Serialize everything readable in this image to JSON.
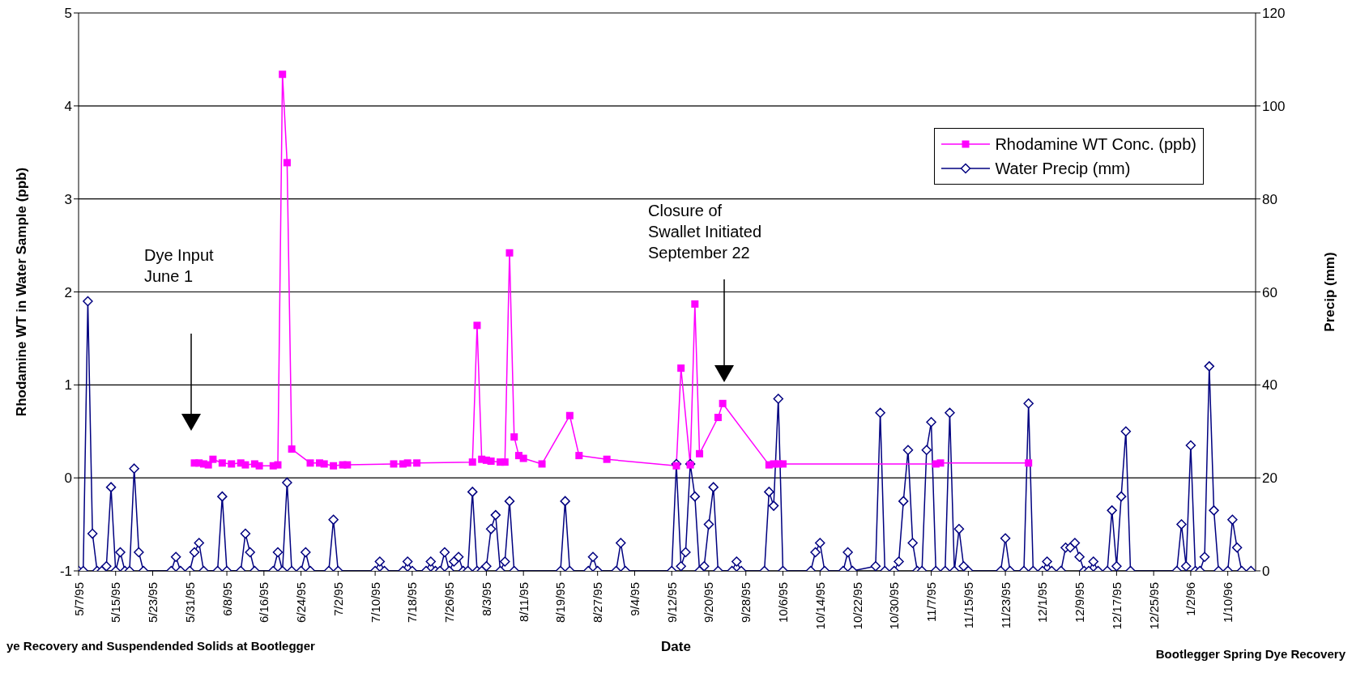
{
  "chart_data": {
    "type": "line",
    "xlabel": "Date",
    "ylabel": "Rhodamine WT in Water Sample (ppb)",
    "y2label": "Precip (mm)",
    "xlim": [
      "1995-05-07",
      "1996-01-16"
    ],
    "xticks": [
      {
        "value": "1995-05-07",
        "label": "5/7/95"
      },
      {
        "value": "1995-05-15",
        "label": "5/15/95"
      },
      {
        "value": "1995-05-23",
        "label": "5/23/95"
      },
      {
        "value": "1995-05-31",
        "label": "5/31/95"
      },
      {
        "value": "1995-06-08",
        "label": "6/8/95"
      },
      {
        "value": "1995-06-16",
        "label": "6/16/95"
      },
      {
        "value": "1995-06-24",
        "label": "6/24/95"
      },
      {
        "value": "1995-07-02",
        "label": "7/2/95"
      },
      {
        "value": "1995-07-10",
        "label": "7/10/95"
      },
      {
        "value": "1995-07-18",
        "label": "7/18/95"
      },
      {
        "value": "1995-07-26",
        "label": "7/26/95"
      },
      {
        "value": "1995-08-03",
        "label": "8/3/95"
      },
      {
        "value": "1995-08-11",
        "label": "8/11/95"
      },
      {
        "value": "1995-08-19",
        "label": "8/19/95"
      },
      {
        "value": "1995-08-27",
        "label": "8/27/95"
      },
      {
        "value": "1995-09-04",
        "label": "9/4/95"
      },
      {
        "value": "1995-09-12",
        "label": "9/12/95"
      },
      {
        "value": "1995-09-20",
        "label": "9/20/95"
      },
      {
        "value": "1995-09-28",
        "label": "9/28/95"
      },
      {
        "value": "1995-10-06",
        "label": "10/6/95"
      },
      {
        "value": "1995-10-14",
        "label": "10/14/95"
      },
      {
        "value": "1995-10-22",
        "label": "10/22/95"
      },
      {
        "value": "1995-10-30",
        "label": "10/30/95"
      },
      {
        "value": "1995-11-07",
        "label": "11/7/95"
      },
      {
        "value": "1995-11-15",
        "label": "11/15/95"
      },
      {
        "value": "1995-11-23",
        "label": "11/23/95"
      },
      {
        "value": "1995-12-01",
        "label": "12/1/95"
      },
      {
        "value": "1995-12-09",
        "label": "12/9/95"
      },
      {
        "value": "1995-12-17",
        "label": "12/17/95"
      },
      {
        "value": "1995-12-25",
        "label": "12/25/95"
      },
      {
        "value": "1996-01-02",
        "label": "1/2/96"
      },
      {
        "value": "1996-01-10",
        "label": "1/10/96"
      }
    ],
    "ylim": [
      -1,
      5
    ],
    "yticks": [
      -1,
      0,
      1,
      2,
      3,
      4,
      5
    ],
    "y2lim": [
      0,
      120
    ],
    "y2ticks": [
      0,
      20,
      40,
      60,
      80,
      100,
      120
    ],
    "grid": "y",
    "legend": "top right",
    "line_style": "solid",
    "series": [
      {
        "name": "Rhodamine WT Conc. (ppb)",
        "color": "#ff00ff",
        "marker": "square",
        "x": [
          "1995-06-01",
          "1995-06-02",
          "1995-06-03",
          "1995-06-04",
          "1995-06-05",
          "1995-06-07",
          "1995-06-09",
          "1995-06-11",
          "1995-06-12",
          "1995-06-14",
          "1995-06-15",
          "1995-06-18",
          "1995-06-19",
          "1995-06-20",
          "1995-06-21",
          "1995-06-22",
          "1995-06-26",
          "1995-06-28",
          "1995-06-29",
          "1995-07-01",
          "1995-07-03",
          "1995-07-04",
          "1995-07-14",
          "1995-07-16",
          "1995-07-17",
          "1995-07-19",
          "1995-07-31",
          "1995-08-01",
          "1995-08-02",
          "1995-08-03",
          "1995-08-04",
          "1995-08-06",
          "1995-08-07",
          "1995-08-08",
          "1995-08-09",
          "1995-08-10",
          "1995-08-11",
          "1995-08-15",
          "1995-08-21",
          "1995-08-23",
          "1995-08-29",
          "1995-09-13",
          "1995-09-14",
          "1995-09-16",
          "1995-09-17",
          "1995-09-18",
          "1995-09-22",
          "1995-09-23",
          "1995-10-03",
          "1995-10-04",
          "1995-10-05",
          "1995-10-06",
          "1995-11-08",
          "1995-11-09",
          "1995-11-28"
        ],
        "values": [
          0.16,
          0.16,
          0.15,
          0.14,
          0.2,
          0.16,
          0.15,
          0.16,
          0.14,
          0.15,
          0.13,
          0.13,
          0.14,
          4.34,
          3.39,
          0.31,
          0.16,
          0.16,
          0.15,
          0.13,
          0.14,
          0.14,
          0.15,
          0.15,
          0.16,
          0.16,
          0.17,
          1.64,
          0.2,
          0.19,
          0.18,
          0.17,
          0.17,
          2.42,
          0.44,
          0.24,
          0.21,
          0.15,
          0.67,
          0.24,
          0.2,
          0.13,
          1.18,
          0.14,
          1.87,
          0.26,
          0.65,
          0.8,
          0.14,
          0.15,
          0.15,
          0.15,
          0.15,
          0.16,
          0.16
        ]
      },
      {
        "name": "Water Precip (mm)",
        "color": "#000080",
        "marker": "diamond",
        "axis": "y2",
        "x": [
          "1995-05-07",
          "1995-05-08",
          "1995-05-09",
          "1995-05-10",
          "1995-05-11",
          "1995-05-12",
          "1995-05-13",
          "1995-05-14",
          "1995-05-15",
          "1995-05-16",
          "1995-05-17",
          "1995-05-18",
          "1995-05-19",
          "1995-05-20",
          "1995-05-21",
          "1995-05-27",
          "1995-05-28",
          "1995-05-29",
          "1995-05-31",
          "1995-06-01",
          "1995-06-02",
          "1995-06-03",
          "1995-06-06",
          "1995-06-07",
          "1995-06-08",
          "1995-06-11",
          "1995-06-12",
          "1995-06-13",
          "1995-06-14",
          "1995-06-18",
          "1995-06-19",
          "1995-06-20",
          "1995-06-21",
          "1995-06-22",
          "1995-06-24",
          "1995-06-25",
          "1995-06-26",
          "1995-06-30",
          "1995-07-01",
          "1995-07-02",
          "1995-07-10",
          "1995-07-11",
          "1995-07-12",
          "1995-07-16",
          "1995-07-17",
          "1995-07-18",
          "1995-07-21",
          "1995-07-22",
          "1995-07-23",
          "1995-07-24",
          "1995-07-25",
          "1995-07-26",
          "1995-07-27",
          "1995-07-28",
          "1995-07-29",
          "1995-07-30",
          "1995-07-31",
          "1995-08-01",
          "1995-08-02",
          "1995-08-03",
          "1995-08-04",
          "1995-08-05",
          "1995-08-06",
          "1995-08-07",
          "1995-08-08",
          "1995-08-09",
          "1995-08-19",
          "1995-08-20",
          "1995-08-21",
          "1995-08-25",
          "1995-08-26",
          "1995-08-27",
          "1995-08-31",
          "1995-09-01",
          "1995-09-02",
          "1995-09-12",
          "1995-09-13",
          "1995-09-14",
          "1995-09-15",
          "1995-09-16",
          "1995-09-17",
          "1995-09-18",
          "1995-09-19",
          "1995-09-20",
          "1995-09-21",
          "1995-09-22",
          "1995-09-25",
          "1995-09-26",
          "1995-09-27",
          "1995-10-02",
          "1995-10-03",
          "1995-10-04",
          "1995-10-05",
          "1995-10-06",
          "1995-10-12",
          "1995-10-13",
          "1995-10-14",
          "1995-10-15",
          "1995-10-19",
          "1995-10-20",
          "1995-10-21",
          "1995-10-26",
          "1995-10-27",
          "1995-10-28",
          "1995-10-30",
          "1995-10-31",
          "1995-11-01",
          "1995-11-02",
          "1995-11-03",
          "1995-11-04",
          "1995-11-05",
          "1995-11-06",
          "1995-11-07",
          "1995-11-08",
          "1995-11-10",
          "1995-11-11",
          "1995-11-12",
          "1995-11-13",
          "1995-11-14",
          "1995-11-15",
          "1995-11-22",
          "1995-11-23",
          "1995-11-24",
          "1995-11-27",
          "1995-11-28",
          "1995-11-29",
          "1995-12-01",
          "1995-12-02",
          "1995-12-03",
          "1995-12-05",
          "1995-12-06",
          "1995-12-07",
          "1995-12-08",
          "1995-12-09",
          "1995-12-10",
          "1995-12-11",
          "1995-12-12",
          "1995-12-13",
          "1995-12-15",
          "1995-12-16",
          "1995-12-17",
          "1995-12-18",
          "1995-12-19",
          "1995-12-20",
          "1995-12-30",
          "1995-12-31",
          "1996-01-01",
          "1996-01-02",
          "1996-01-03",
          "1996-01-04",
          "1996-01-05",
          "1996-01-06",
          "1996-01-07",
          "1996-01-08",
          "1996-01-10",
          "1996-01-11",
          "1996-01-12",
          "1996-01-13",
          "1996-01-15"
        ],
        "values": [
          0,
          0,
          58,
          8,
          0,
          0,
          1,
          18,
          0,
          4,
          0,
          0,
          22,
          4,
          0,
          0,
          3,
          0,
          0,
          4,
          6,
          0,
          0,
          16,
          0,
          0,
          8,
          4,
          0,
          0,
          4,
          0,
          19,
          0,
          0,
          4,
          0,
          0,
          11,
          0,
          0,
          2,
          0,
          0,
          2,
          0,
          0,
          2,
          0,
          0,
          4,
          0,
          2,
          3,
          0,
          0,
          17,
          0,
          0,
          1,
          9,
          12,
          0,
          2,
          15,
          0,
          0,
          15,
          0,
          0,
          3,
          0,
          0,
          6,
          0,
          0,
          23,
          1,
          4,
          23,
          16,
          0,
          1,
          10,
          18,
          0,
          0,
          2,
          0,
          0,
          17,
          14,
          37,
          0,
          0,
          4,
          6,
          0,
          0,
          4,
          0,
          1,
          34,
          0,
          0,
          2,
          15,
          26,
          6,
          0,
          0,
          26,
          32,
          0,
          0,
          34,
          0,
          9,
          1,
          0,
          0,
          7,
          0,
          0,
          36,
          0,
          0,
          2,
          0,
          0,
          5,
          5,
          6,
          3,
          0,
          0,
          2,
          0,
          0,
          13,
          1,
          16,
          30,
          0,
          0,
          10,
          1,
          27,
          0,
          0,
          3,
          44,
          13,
          0,
          0,
          11,
          5,
          0,
          0
        ]
      }
    ],
    "annotations": [
      "Dye Input\nJune 1",
      "Closure of\nSwallet Initiated\nSeptember 22",
      "ye Recovery and Suspendended Solids at Bootlegger",
      "Bootlegger Spring Dye Recovery"
    ]
  }
}
